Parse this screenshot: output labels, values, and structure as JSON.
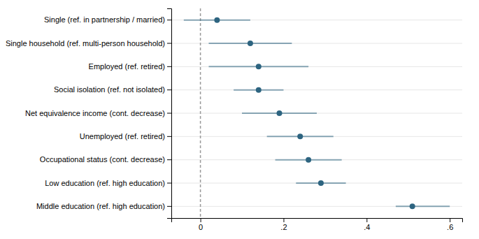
{
  "chart_data": {
    "type": "forest",
    "orientation": "horizontal",
    "categories": [
      "Single (ref. in partnership / married)",
      "Single household (ref. multi-person household)",
      "Employed (ref. retired)",
      "Social isolation (ref. not isolated)",
      "Net equivalence income (cont. decrease)",
      "Unemployed (ref. retired)",
      "Occupational status (cont. decrease)",
      "Low education (ref. high education)",
      "Middle education (ref. high education)"
    ],
    "values": [
      0.04,
      0.12,
      0.14,
      0.14,
      0.19,
      0.24,
      0.26,
      0.29,
      0.51
    ],
    "ci_lower": [
      -0.04,
      0.02,
      0.02,
      0.08,
      0.1,
      0.16,
      0.18,
      0.23,
      0.47
    ],
    "ci_upper": [
      0.12,
      0.22,
      0.26,
      0.2,
      0.28,
      0.32,
      0.34,
      0.35,
      0.6
    ],
    "reference_line": 0.0,
    "color": "#2d6480",
    "xlim": [
      -0.07,
      0.63
    ],
    "xticks": [
      0,
      {
        "value": 0.2,
        "label": ".2"
      },
      {
        "value": 0.4,
        "label": ".4"
      },
      {
        "value": 0.6,
        "label": ".6"
      }
    ],
    "grid": true
  }
}
